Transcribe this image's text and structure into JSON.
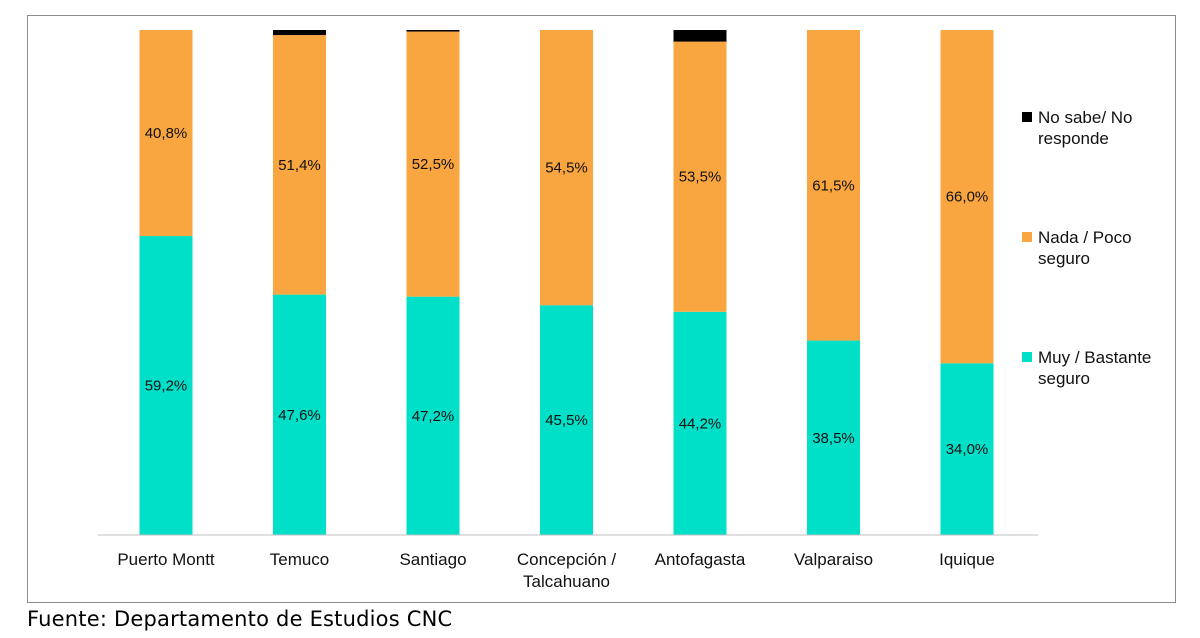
{
  "chart_data": {
    "type": "bar",
    "stacked": true,
    "categories": [
      [
        "Puerto Montt"
      ],
      [
        "Temuco"
      ],
      [
        "Santiago"
      ],
      [
        "Concepción /",
        "Talcahuano"
      ],
      [
        "Antofagasta"
      ],
      [
        "Valparaiso"
      ],
      [
        "Iquique"
      ]
    ],
    "series": [
      {
        "name": "Muy / Bastante seguro",
        "name_lines": [
          "Muy / Bastante",
          "seguro"
        ],
        "color": "#00dfc8",
        "values": [
          59.2,
          47.6,
          47.2,
          45.5,
          44.2,
          38.5,
          34.0
        ],
        "labels": [
          "59,2%",
          "47,6%",
          "47,2%",
          "45,5%",
          "44,2%",
          "38,5%",
          "34,0%"
        ]
      },
      {
        "name": "Nada / Poco seguro",
        "name_lines": [
          "Nada / Poco",
          "seguro"
        ],
        "color": "#f9a540",
        "values": [
          40.8,
          51.4,
          52.5,
          54.5,
          53.5,
          61.5,
          66.0
        ],
        "labels": [
          "40,8%",
          "51,4%",
          "52,5%",
          "54,5%",
          "53,5%",
          "61,5%",
          "66,0%"
        ]
      },
      {
        "name": "No sabe/ No responde",
        "name_lines": [
          "No sabe/ No",
          "responde"
        ],
        "color": "#000000",
        "values": [
          0,
          1.0,
          0.3,
          0,
          2.3,
          0,
          0
        ],
        "labels": [
          "",
          "",
          "",
          "",
          "",
          "",
          ""
        ]
      }
    ],
    "ylim": [
      0,
      100
    ],
    "grid": false,
    "legend": "right"
  },
  "source": "Fuente: Departamento de Estudios CNC"
}
